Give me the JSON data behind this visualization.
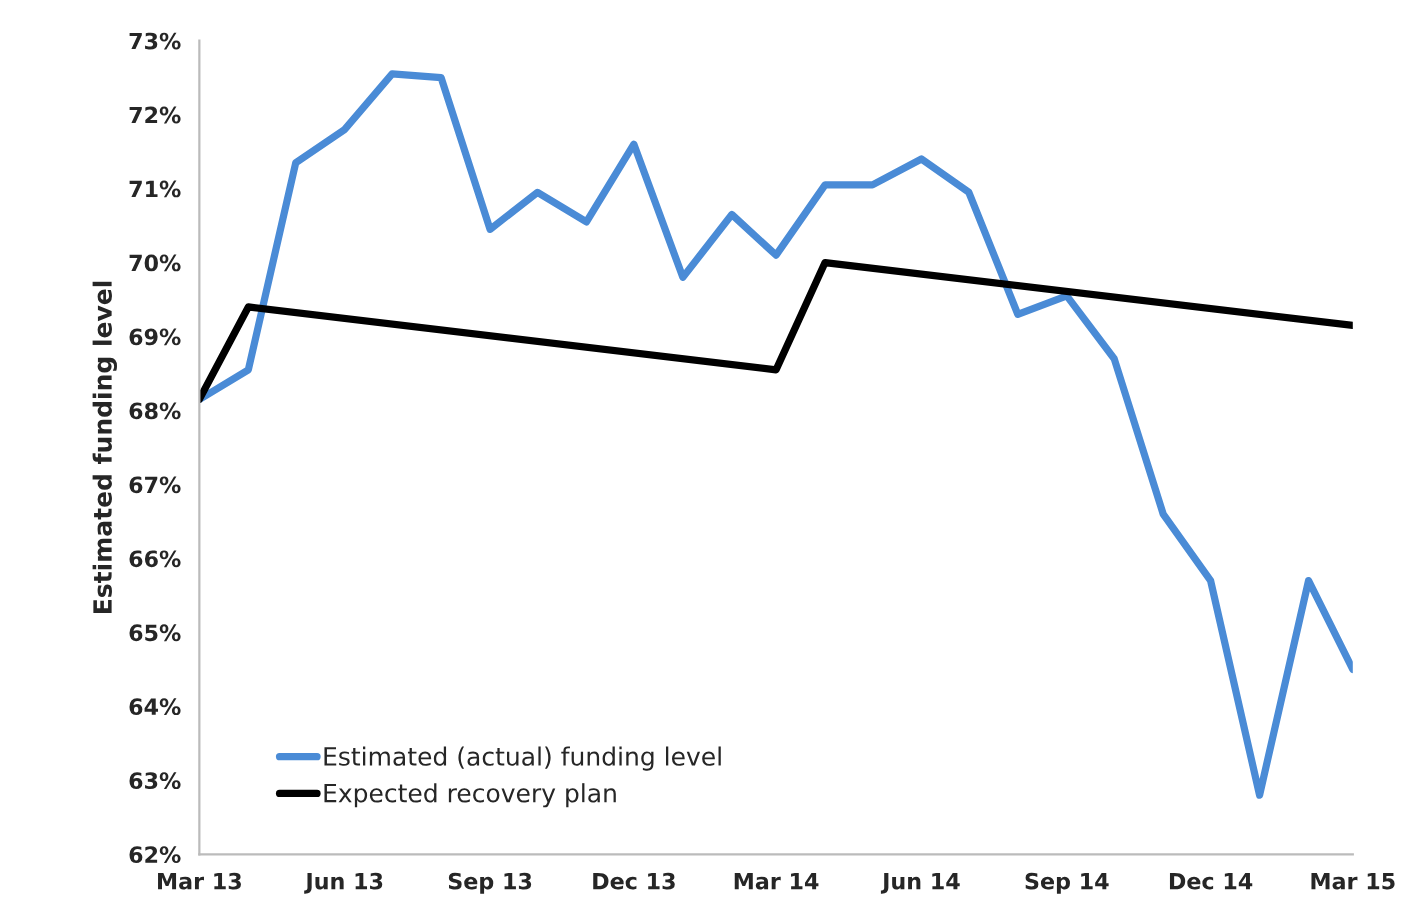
{
  "chart_data": {
    "type": "line",
    "ylabel": "Estimated funding level",
    "series": [
      {
        "name": "Estimated (actual) funding level",
        "color": "#4a8bd6",
        "x": [
          "2013-03",
          "2013-04",
          "2013-05",
          "2013-06",
          "2013-07",
          "2013-08",
          "2013-09",
          "2013-10",
          "2013-11",
          "2013-12",
          "2014-01",
          "2014-02",
          "2014-03",
          "2014-04",
          "2014-05",
          "2014-06",
          "2014-07",
          "2014-08",
          "2014-09",
          "2014-10",
          "2014-11",
          "2014-12",
          "2015-01",
          "2015-02",
          "2015-03"
        ],
        "values": [
          68.15,
          68.55,
          71.35,
          71.8,
          72.55,
          72.5,
          70.45,
          70.95,
          70.55,
          71.6,
          69.8,
          70.65,
          70.1,
          71.05,
          71.05,
          71.4,
          70.95,
          69.3,
          69.55,
          68.7,
          66.6,
          65.7,
          62.8,
          65.7,
          64.5
        ]
      },
      {
        "name": "Expected recovery plan",
        "color": "#000000",
        "x": [
          "2013-03",
          "2013-04",
          "2014-03",
          "2014-04",
          "2015-03"
        ],
        "values": [
          68.15,
          69.4,
          68.55,
          70.0,
          69.15
        ]
      }
    ],
    "xlim": [
      "2013-03",
      "2015-03"
    ],
    "xticks": [
      {
        "value": "2013-03",
        "label": "Mar 13"
      },
      {
        "value": "2013-06",
        "label": "Jun 13"
      },
      {
        "value": "2013-09",
        "label": "Sep 13"
      },
      {
        "value": "2013-12",
        "label": "Dec 13"
      },
      {
        "value": "2014-03",
        "label": "Mar 14"
      },
      {
        "value": "2014-06",
        "label": "Jun 14"
      },
      {
        "value": "2014-09",
        "label": "Sep 14"
      },
      {
        "value": "2014-12",
        "label": "Dec 14"
      },
      {
        "value": "2015-03",
        "label": "Mar 15"
      }
    ],
    "ylim": [
      62,
      73
    ],
    "yticks": [
      {
        "value": 62,
        "label": "62%"
      },
      {
        "value": 63,
        "label": "63%"
      },
      {
        "value": 64,
        "label": "64%"
      },
      {
        "value": 65,
        "label": "65%"
      },
      {
        "value": 66,
        "label": "66%"
      },
      {
        "value": 67,
        "label": "67%"
      },
      {
        "value": 68,
        "label": "68%"
      },
      {
        "value": 69,
        "label": "69%"
      },
      {
        "value": 70,
        "label": "70%"
      },
      {
        "value": 71,
        "label": "71%"
      },
      {
        "value": 72,
        "label": "72%"
      },
      {
        "value": 73,
        "label": "73%"
      }
    ],
    "grid": false,
    "legend": "bottom left",
    "marker": "none",
    "line_style": "solid"
  }
}
